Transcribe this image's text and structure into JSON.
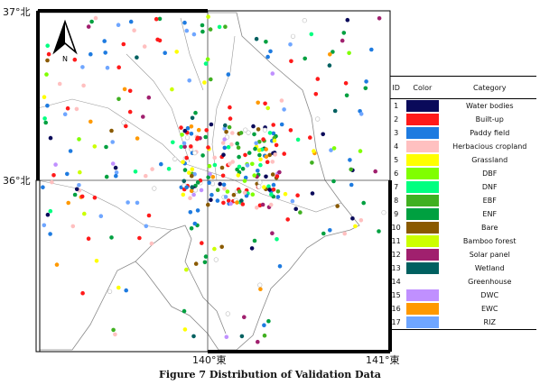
{
  "axes": {
    "lat_top": "37°北",
    "lat_mid": "36°北",
    "lon_mid": "140°東",
    "lon_right": "141°東"
  },
  "north_arrow_label": "N",
  "legend": {
    "headers": {
      "id": "ID",
      "color": "Color",
      "category": "Category"
    },
    "items": [
      {
        "id": "1",
        "color": "#0a0a5a",
        "category": "Water bodies"
      },
      {
        "id": "2",
        "color": "#ff1a1a",
        "category": "Built-up"
      },
      {
        "id": "3",
        "color": "#1e7be0",
        "category": "Paddy field"
      },
      {
        "id": "4",
        "color": "#ffc0c0",
        "category": "Herbacious cropland"
      },
      {
        "id": "5",
        "color": "#ffff00",
        "category": "Grassland"
      },
      {
        "id": "6",
        "color": "#80ff00",
        "category": "DBF"
      },
      {
        "id": "7",
        "color": "#00ff80",
        "category": "DNF"
      },
      {
        "id": "8",
        "color": "#40b020",
        "category": "EBF"
      },
      {
        "id": "9",
        "color": "#00a040",
        "category": "ENF"
      },
      {
        "id": "10",
        "color": "#8a5a00",
        "category": "Bare"
      },
      {
        "id": "11",
        "color": "#ccff00",
        "category": "Bamboo forest"
      },
      {
        "id": "12",
        "color": "#a0206e",
        "category": "Solar panel"
      },
      {
        "id": "13",
        "color": "#006060",
        "category": "Wetland"
      },
      {
        "id": "14",
        "color": "#ffffff",
        "category": "Greenhouse"
      },
      {
        "id": "15",
        "color": "#c090ff",
        "category": "DWC"
      },
      {
        "id": "16",
        "color": "#ff9900",
        "category": "EWC"
      },
      {
        "id": "17",
        "color": "#6fa6ff",
        "category": "RIZ"
      }
    ]
  },
  "caption": "Figure 7   Distribution of Validation Data"
}
